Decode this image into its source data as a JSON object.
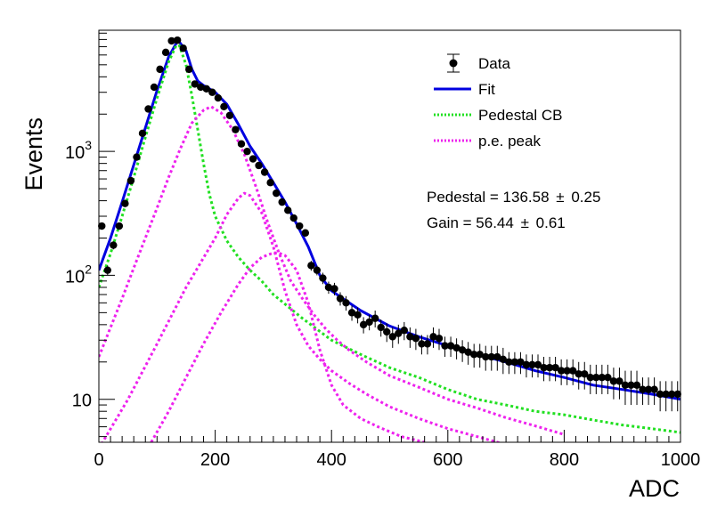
{
  "chart_data": {
    "type": "scatter",
    "xlabel": "ADC",
    "ylabel": "Events",
    "xlim": [
      0,
      1000
    ],
    "ylim": [
      4.5,
      9500
    ],
    "yscale": "log",
    "x_ticks": [
      0,
      200,
      400,
      600,
      800,
      1000
    ],
    "x_tick_labels": [
      "0",
      "200",
      "400",
      "600",
      "800",
      "1000"
    ],
    "y_major_ticks": [
      10,
      100,
      1000
    ],
    "y_tick_labels": [
      "10",
      "10",
      "10"
    ],
    "y_tick_exponents": [
      "",
      "2",
      "3"
    ],
    "legend_position": "top-right",
    "legend": [
      {
        "name": "Data",
        "style": "marker",
        "color": "#000000"
      },
      {
        "name": "Fit",
        "style": "solid",
        "color": "#0000e0"
      },
      {
        "name": "Pedestal CB",
        "style": "dotted",
        "color": "#22e022"
      },
      {
        "name": "p.e. peak",
        "style": "dotted",
        "color": "#ee22ee"
      }
    ],
    "annotations": [
      {
        "label": "Pedestal = 136.58",
        "pm": "±",
        "err": "0.25"
      },
      {
        "label": "Gain = 56.44",
        "pm": "±",
        "err": "0.61"
      }
    ],
    "fit_params": {
      "pedestal": 136.58,
      "gain": 56.44
    },
    "series": [
      {
        "name": "Data",
        "color": "#000000",
        "x": [
          5,
          15,
          25,
          35,
          45,
          55,
          65,
          75,
          85,
          95,
          105,
          115,
          125,
          135,
          145,
          155,
          165,
          175,
          185,
          195,
          205,
          215,
          225,
          235,
          245,
          255,
          265,
          275,
          285,
          295,
          305,
          315,
          325,
          335,
          345,
          355,
          365,
          375,
          385,
          395,
          405,
          415,
          425,
          435,
          445,
          455,
          465,
          475,
          485,
          495,
          505,
          515,
          525,
          535,
          545,
          555,
          565,
          575,
          585,
          595,
          605,
          615,
          625,
          635,
          645,
          655,
          665,
          675,
          685,
          695,
          705,
          715,
          725,
          735,
          745,
          755,
          765,
          775,
          785,
          795,
          805,
          815,
          825,
          835,
          845,
          855,
          865,
          875,
          885,
          895,
          905,
          915,
          925,
          935,
          945,
          955,
          965,
          975,
          985,
          995
        ],
        "y": [
          250,
          110,
          175,
          250,
          380,
          580,
          900,
          1400,
          2200,
          3300,
          4600,
          6300,
          7800,
          7900,
          6800,
          4600,
          3500,
          3300,
          3200,
          3000,
          2700,
          2300,
          1950,
          1500,
          1150,
          1000,
          870,
          770,
          680,
          560,
          460,
          390,
          335,
          290,
          250,
          220,
          120,
          110,
          95,
          80,
          78,
          65,
          60,
          50,
          48,
          40,
          42,
          45,
          38,
          35,
          32,
          34,
          36,
          32,
          31,
          28,
          28,
          32,
          31,
          27,
          27,
          26,
          25,
          24,
          23,
          23,
          22,
          22,
          22,
          21,
          20,
          20,
          20,
          19,
          19,
          19,
          18,
          18,
          18,
          17,
          17,
          17,
          16,
          16,
          15,
          15,
          15,
          15,
          14,
          14,
          13,
          13,
          13,
          12,
          12,
          12,
          11,
          11,
          11,
          11
        ],
        "yerr": [
          15,
          10,
          13,
          15,
          19,
          24,
          30,
          37,
          47,
          57,
          68,
          79,
          88,
          89,
          82,
          68,
          59,
          57,
          56,
          55,
          52,
          48,
          44,
          39,
          34,
          32,
          30,
          28,
          26,
          24,
          21,
          20,
          18,
          17,
          16,
          15,
          11,
          10,
          10,
          9,
          9,
          8,
          8,
          7,
          7,
          6,
          6,
          7,
          6,
          6,
          6,
          6,
          6,
          6,
          6,
          5,
          5,
          6,
          6,
          5,
          5,
          5,
          5,
          5,
          5,
          5,
          5,
          5,
          5,
          5,
          4,
          4,
          4,
          4,
          4,
          4,
          4,
          4,
          4,
          4,
          4,
          4,
          4,
          4,
          4,
          4,
          4,
          4,
          4,
          4,
          4,
          4,
          4,
          3,
          3,
          3,
          3,
          3,
          3,
          3
        ]
      },
      {
        "name": "Fit",
        "color": "#0000e0",
        "x": [
          0,
          20,
          40,
          60,
          80,
          100,
          120,
          136,
          150,
          160,
          170,
          180,
          190,
          200,
          220,
          240,
          260,
          280,
          300,
          320,
          340,
          360,
          380,
          400,
          450,
          500,
          550,
          600,
          650,
          700,
          750,
          800,
          850,
          900,
          950,
          1000
        ],
        "y": [
          110,
          200,
          390,
          780,
          1550,
          3100,
          5800,
          7900,
          6500,
          4600,
          3700,
          3400,
          3200,
          3000,
          2400,
          1650,
          1100,
          800,
          560,
          390,
          260,
          170,
          100,
          75,
          52,
          39,
          32,
          27,
          23,
          20,
          17,
          15,
          13,
          12,
          11,
          10
        ]
      },
      {
        "name": "Pedestal CB",
        "color": "#22e022",
        "x": [
          0,
          20,
          40,
          60,
          80,
          100,
          120,
          136,
          150,
          160,
          170,
          180,
          190,
          200,
          220,
          240,
          260,
          280,
          300,
          350,
          400,
          450,
          500,
          550,
          600,
          650,
          700,
          750,
          800,
          850,
          900,
          950,
          1000
        ],
        "y": [
          80,
          150,
          300,
          620,
          1300,
          2700,
          5300,
          7700,
          5000,
          2800,
          1500,
          800,
          450,
          300,
          190,
          140,
          110,
          90,
          70,
          45,
          30,
          23,
          18,
          15,
          12,
          10,
          9,
          8,
          7.5,
          6.8,
          6.2,
          5.8,
          5.4
        ]
      },
      {
        "name": "p.e. peak 1",
        "color": "#ee22ee",
        "x": [
          0,
          20,
          40,
          60,
          80,
          100,
          120,
          140,
          160,
          180,
          193,
          210,
          230,
          250,
          270,
          290,
          310,
          330,
          350,
          370,
          390,
          410,
          430,
          460,
          500,
          550,
          600,
          650,
          700,
          750,
          800
        ],
        "y": [
          22,
          38,
          65,
          115,
          200,
          350,
          620,
          1050,
          1700,
          2150,
          2300,
          2050,
          1500,
          950,
          520,
          270,
          150,
          90,
          65,
          48,
          37,
          30,
          25,
          20,
          15.5,
          12.5,
          10,
          8.5,
          7.1,
          6.1,
          5.2
        ]
      },
      {
        "name": "p.e. peak 2",
        "color": "#ee22ee",
        "x": [
          0,
          50,
          100,
          150,
          200,
          220,
          240,
          250,
          260,
          280,
          300,
          320,
          340,
          360,
          380,
          400,
          430,
          460,
          500,
          550,
          600,
          650,
          700
        ],
        "y": [
          4,
          10,
          28,
          80,
          200,
          310,
          420,
          460,
          440,
          320,
          170,
          75,
          40,
          27,
          21,
          17,
          13.5,
          11,
          8.7,
          7,
          5.8,
          5,
          4.3
        ]
      },
      {
        "name": "p.e. peak 3",
        "color": "#ee22ee",
        "x": [
          90,
          120,
          150,
          180,
          210,
          240,
          260,
          280,
          300,
          308,
          320,
          340,
          360,
          380,
          400,
          420,
          450,
          480,
          520,
          560
        ],
        "y": [
          4.5,
          8,
          15,
          28,
          50,
          85,
          115,
          140,
          152,
          152,
          145,
          110,
          60,
          25,
          13,
          9,
          7,
          6,
          5,
          4.5
        ]
      }
    ]
  }
}
